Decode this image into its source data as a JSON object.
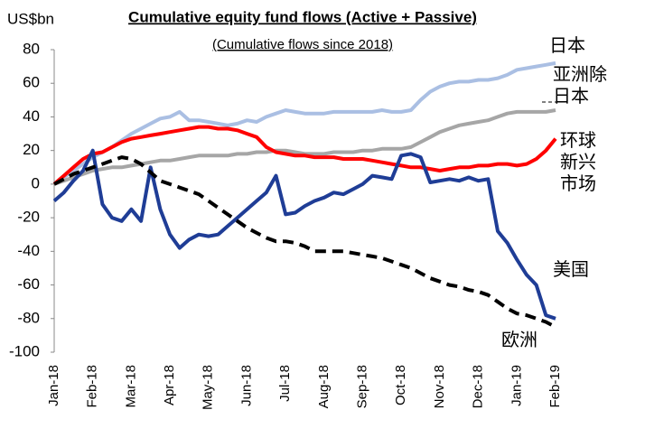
{
  "chart_data": {
    "type": "line",
    "title": "Cumulative equity fund flows (Active + Passive)",
    "subtitle": "(Cumulative flows since 2018)",
    "y_label": "US$bn",
    "categories": [
      "Jan-18",
      null,
      null,
      null,
      "Feb-18",
      null,
      null,
      null,
      "Mar-18",
      null,
      null,
      null,
      "Apr-18",
      null,
      null,
      null,
      "May-18",
      null,
      null,
      null,
      "Jun-18",
      null,
      null,
      null,
      "Jul-18",
      null,
      null,
      null,
      "Aug-18",
      null,
      null,
      null,
      "Sep-18",
      null,
      null,
      null,
      "Oct-18",
      null,
      null,
      null,
      "Nov-18",
      null,
      null,
      null,
      "Dec-18",
      null,
      null,
      null,
      "Jan-19",
      null,
      null,
      null,
      "Feb-19"
    ],
    "ylim": [
      -100,
      80
    ],
    "yticks": [
      -100,
      -80,
      -60,
      -40,
      -20,
      0,
      20,
      40,
      60,
      80
    ],
    "grid": false,
    "series": [
      {
        "name": "日本",
        "color": "#aabfe3",
        "values": [
          0,
          4,
          8,
          12,
          16,
          19,
          22,
          26,
          30,
          33,
          36,
          39,
          40,
          43,
          38,
          38,
          37,
          36,
          35,
          36,
          38,
          37,
          40,
          42,
          44,
          43,
          42,
          42,
          42,
          43,
          43,
          43,
          43,
          43,
          44,
          43,
          43,
          44,
          50,
          55,
          58,
          60,
          61,
          61,
          62,
          62,
          63,
          65,
          68,
          69,
          70,
          71,
          72
        ]
      },
      {
        "name": "亚洲除日本",
        "color": "#a6a6a6",
        "values": [
          0,
          2,
          4,
          6,
          8,
          9,
          10,
          10,
          11,
          12,
          13,
          14,
          14,
          15,
          16,
          17,
          17,
          17,
          17,
          18,
          18,
          19,
          19,
          20,
          20,
          19,
          18,
          18,
          18,
          19,
          19,
          19,
          20,
          20,
          21,
          21,
          21,
          22,
          25,
          28,
          31,
          33,
          35,
          36,
          37,
          38,
          40,
          42,
          43,
          43,
          43,
          43,
          44
        ]
      },
      {
        "name": "环球新兴市场",
        "color": "#ff0000",
        "values": [
          0,
          5,
          10,
          15,
          18,
          19,
          22,
          25,
          27,
          28,
          29,
          30,
          31,
          32,
          33,
          34,
          34,
          33,
          33,
          32,
          30,
          28,
          22,
          19,
          18,
          17,
          17,
          16,
          16,
          16,
          15,
          15,
          15,
          14,
          13,
          12,
          11,
          10,
          10,
          9,
          8,
          9,
          10,
          10,
          11,
          11,
          12,
          12,
          11,
          12,
          15,
          20,
          27
        ]
      },
      {
        "name": "美国",
        "color": "#1f3d96",
        "values": [
          -10,
          -5,
          2,
          8,
          20,
          -12,
          -20,
          -22,
          -15,
          -22,
          10,
          -15,
          -30,
          -38,
          -33,
          -30,
          -31,
          -30,
          -25,
          -20,
          -15,
          -10,
          -5,
          5,
          -18,
          -17,
          -13,
          -10,
          -8,
          -5,
          -6,
          -3,
          0,
          5,
          4,
          3,
          17,
          18,
          16,
          1,
          2,
          3,
          2,
          4,
          2,
          3,
          -28,
          -35,
          -45,
          -54,
          -60,
          -78,
          -80
        ]
      },
      {
        "name": "欧洲",
        "color": "#000000",
        "dashed": true,
        "values": [
          0,
          3,
          6,
          8,
          10,
          12,
          14,
          16,
          15,
          12,
          7,
          2,
          0,
          -2,
          -4,
          -6,
          -10,
          -14,
          -18,
          -22,
          -26,
          -29,
          -32,
          -34,
          -34,
          -35,
          -37,
          -40,
          -40,
          -40,
          -40,
          -41,
          -42,
          -43,
          -44,
          -46,
          -48,
          -50,
          -53,
          -56,
          -58,
          -60,
          -61,
          -63,
          -64,
          -66,
          -70,
          -74,
          -77,
          -78,
          -80,
          -82,
          -85
        ]
      }
    ]
  }
}
